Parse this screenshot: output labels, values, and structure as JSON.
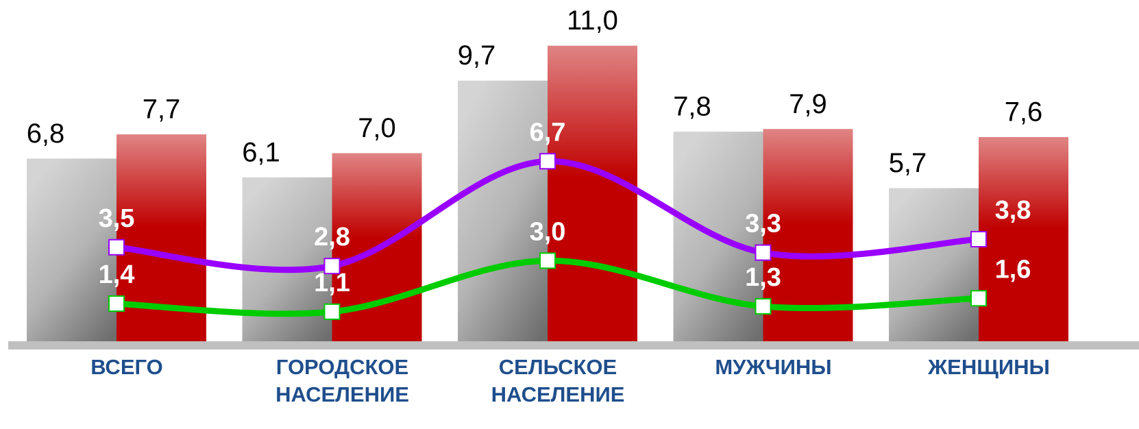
{
  "chart_data": {
    "type": "bar",
    "categories": [
      "ВСЕГО",
      "ГОРОДСКОЕ НАСЕЛЕНИЕ",
      "СЕЛЬСКОЕ НАСЕЛЕНИЕ",
      "МУЖЧИНЫ",
      "ЖЕНЩИНЫ"
    ],
    "ylim": [
      0,
      12.7
    ],
    "series": [
      {
        "type": "bar",
        "color": "#b0b0b0",
        "values": [
          6.8,
          6.1,
          9.7,
          7.8,
          5.7
        ],
        "value_labels": [
          "6,8",
          "6,1",
          "9,7",
          "7,8",
          "5,7"
        ]
      },
      {
        "type": "bar",
        "color": "#c00000",
        "values": [
          7.7,
          7.0,
          11.0,
          7.9,
          7.6
        ],
        "value_labels": [
          "7,7",
          "7,0",
          "11,0",
          "7,9",
          "7,6"
        ]
      },
      {
        "type": "line",
        "color": "#9900ff",
        "values": [
          3.5,
          2.8,
          6.7,
          3.3,
          3.8
        ],
        "value_labels": [
          "3,5",
          "2,8",
          "6,7",
          "3,3",
          "3,8"
        ]
      },
      {
        "type": "line",
        "color": "#00cc00",
        "values": [
          1.4,
          1.1,
          3.0,
          1.3,
          1.6
        ],
        "value_labels": [
          "1,4",
          "1,1",
          "3,0",
          "1,3",
          "1,6"
        ]
      }
    ]
  }
}
